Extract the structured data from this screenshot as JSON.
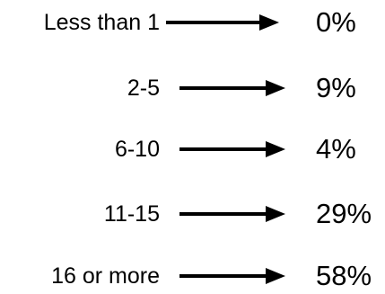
{
  "rows": [
    {
      "label": "Less than 1",
      "value": "0%"
    },
    {
      "label": "2-5",
      "value": "9%"
    },
    {
      "label": "6-10",
      "value": "4%"
    },
    {
      "label": "11-15",
      "value": "29%"
    },
    {
      "label": "16 or more",
      "value": "58%"
    }
  ],
  "colors": {
    "text": "#000000",
    "arrow": "#000000",
    "background": "#ffffff"
  },
  "icons": {
    "arrow": "right-arrow-icon"
  }
}
